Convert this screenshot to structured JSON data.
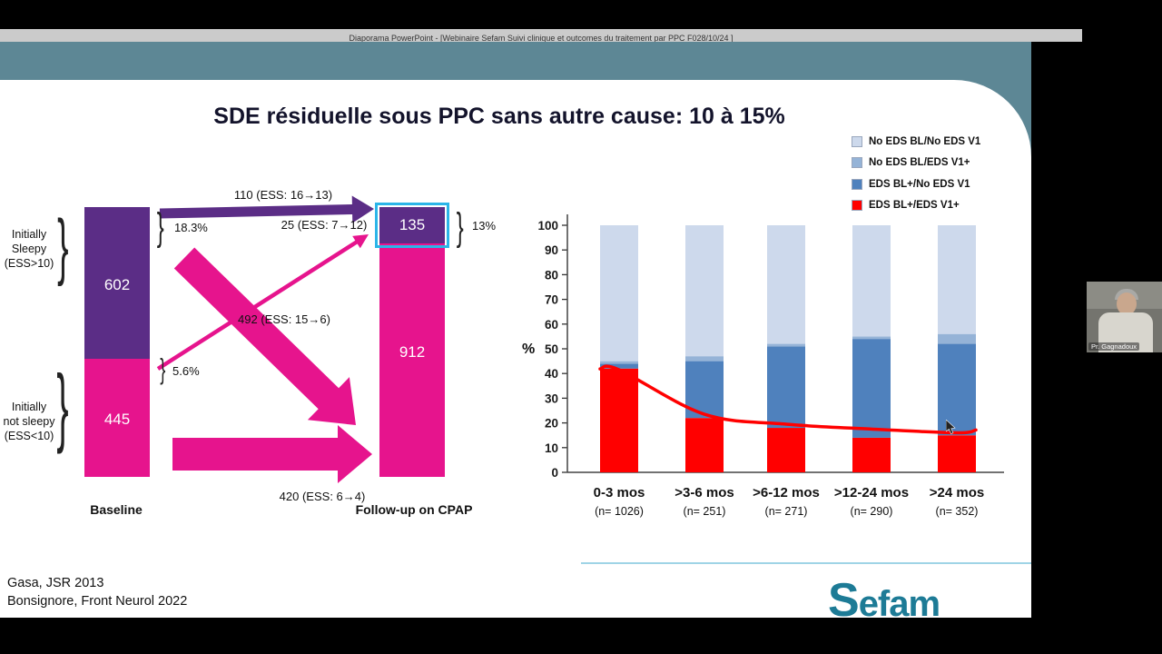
{
  "window": {
    "title": "Diaporama PowerPoint - [Webinaire Sefam Suivi clinique et outcomes du traitement par PPC F028/10/24 ]"
  },
  "slide": {
    "title": "SDE résiduelle sous PPC sans autre cause: 10 à 15%",
    "citations": [
      "Gasa, JSR 2013",
      "Bonsignore, Front Neurol 2022"
    ],
    "logo": "Sefam"
  },
  "flow": {
    "brace": "}",
    "group_top": "Initially\nSleepy\n(ESS>10)",
    "group_bottom": "Initially\nnot sleepy\n(ESS<10)",
    "baseline_sleepy": "602",
    "baseline_not_sleepy": "445",
    "followup_sleepy": "135",
    "followup_not_sleepy": "912",
    "pct_top": "18.3%",
    "pct_bottom": "5.6%",
    "pct_followup": "13%",
    "arrow1_label": "110 (ESS: 16→13)",
    "arrow2_label": "25 (ESS: 7→12)",
    "arrow3_label": "492 (ESS: 15→6)",
    "arrow4_label": "420 (ESS: 6→4)",
    "baseline_axis_label": "Baseline",
    "followup_axis_label": "Follow-up on CPAP",
    "colors": {
      "sleepy": "#5b2d86",
      "not_sleepy": "#e6148d",
      "highlight": "#2bb5e8"
    }
  },
  "chart_data": {
    "type": "stacked-bar",
    "ylabel": "%",
    "ylim": [
      0,
      100
    ],
    "ytick_step": 10,
    "grid": false,
    "legend_position": "top-right",
    "categories": [
      "0-3 mos",
      ">3-6 mos",
      ">6-12 mos",
      ">12-24 mos",
      ">24 mos"
    ],
    "n_labels": [
      "(n= 1026)",
      "(n= 251)",
      "(n= 271)",
      "(n= 290)",
      "(n= 352)"
    ],
    "series": [
      {
        "name": "EDS BL+/EDS V1+",
        "color": "#ff0000",
        "values": [
          42,
          22,
          18,
          14,
          15
        ]
      },
      {
        "name": "EDS BL+/No EDS V1",
        "color": "#4f81bd",
        "values": [
          2,
          23,
          33,
          40,
          37
        ]
      },
      {
        "name": "No EDS BL/EDS V1+",
        "color": "#95b3d7",
        "values": [
          1,
          2,
          1,
          1,
          4
        ]
      },
      {
        "name": "No EDS BL/No EDS V1",
        "color": "#cdd9ec",
        "values": [
          55,
          53,
          48,
          45,
          44
        ]
      }
    ],
    "legend": [
      {
        "label": "No EDS BL/No EDS V1",
        "color": "#cdd9ec"
      },
      {
        "label": "No EDS BL/EDS V1+",
        "color": "#95b3d7"
      },
      {
        "label": "EDS BL+/No EDS V1",
        "color": "#4f81bd"
      },
      {
        "label": "EDS BL+/EDS V1+",
        "color": "#ff0000"
      }
    ],
    "trend_line": {
      "name": "EDS BL+/EDS V1+ trend",
      "color": "#ff0000",
      "values": [
        41.5,
        23.5,
        19.5,
        17.5,
        16
      ]
    }
  },
  "webcam": {
    "name": "Pr. Gagnadoux"
  }
}
